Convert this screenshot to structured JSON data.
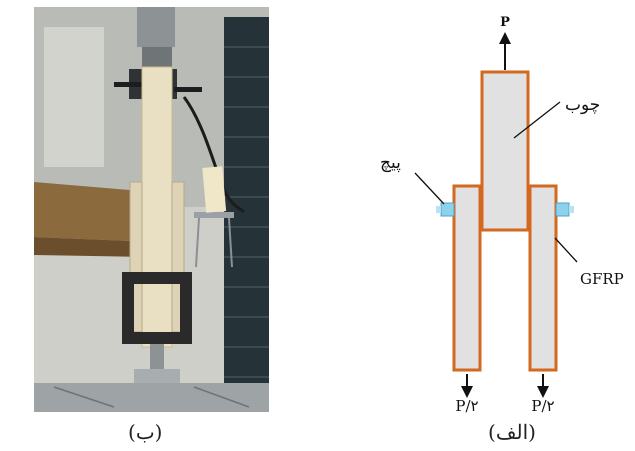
{
  "photo_panel": {
    "caption": "(ب)",
    "colors": {
      "machine": "#253238",
      "wood": "#e9dfc3",
      "clamp": "#2a2a2a",
      "bench": "#8b6a3e"
    }
  },
  "diagram_panel": {
    "caption": "(الف)",
    "load_top": "P",
    "label_wood": "چوب",
    "label_bolt": "پیچ",
    "label_gfrp": "GFRP",
    "load_left": "P/۲",
    "load_right": "P/۲",
    "colors": {
      "plate_fill": "#e1e1e1",
      "plate_border": "#d2691e",
      "bolt": "#8fd0ea"
    }
  }
}
